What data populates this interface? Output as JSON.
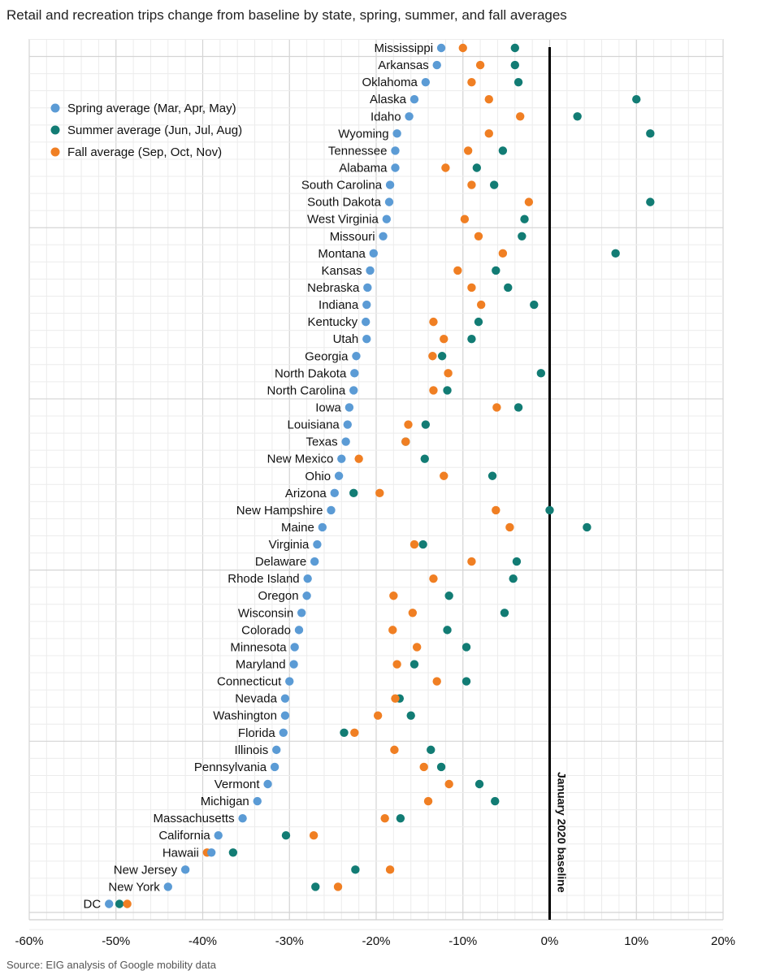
{
  "chart_data": {
    "type": "scatter",
    "title": "Retail and recreation trips change from baseline by state, spring, summer, and fall averages",
    "source": "Source: EIG analysis of Google mobility data",
    "baseline_label": "January 2020 baseline",
    "x_ticks": [
      -60,
      -50,
      -40,
      -30,
      -20,
      -10,
      0,
      10,
      20
    ],
    "x_tick_labels": [
      "-60%",
      "-50%",
      "-40%",
      "-30%",
      "-20%",
      "-10%",
      "0%",
      "10%",
      "20%"
    ],
    "xlim": [
      -60,
      20
    ],
    "series": [
      {
        "name": "Spring average (Mar, Apr, May)",
        "key": "spring",
        "color": "#5b9bd5"
      },
      {
        "name": "Summer average (Jun, Jul, Aug)",
        "key": "summer",
        "color": "#127c74"
      },
      {
        "name": "Fall average (Sep, Oct, Nov)",
        "key": "fall",
        "color": "#f07f23"
      }
    ],
    "states": [
      {
        "name": "Mississippi",
        "spring": -12.5,
        "summer": -4.0,
        "fall": -10.0
      },
      {
        "name": "Arkansas",
        "spring": -13.0,
        "summer": -4.0,
        "fall": -8.0
      },
      {
        "name": "Oklahoma",
        "spring": -14.3,
        "summer": -3.6,
        "fall": -9.0
      },
      {
        "name": "Alaska",
        "spring": -15.6,
        "summer": 10.0,
        "fall": -7.0
      },
      {
        "name": "Idaho",
        "spring": -16.2,
        "summer": 3.2,
        "fall": -3.4
      },
      {
        "name": "Wyoming",
        "spring": -17.6,
        "summer": 11.6,
        "fall": -7.0
      },
      {
        "name": "Tennessee",
        "spring": -17.8,
        "summer": -5.4,
        "fall": -9.4
      },
      {
        "name": "Alabama",
        "spring": -17.8,
        "summer": -8.4,
        "fall": -12.0
      },
      {
        "name": "South Carolina",
        "spring": -18.4,
        "summer": -6.4,
        "fall": -9.0
      },
      {
        "name": "South Dakota",
        "spring": -18.5,
        "summer": 11.6,
        "fall": -2.4
      },
      {
        "name": "West Virginia",
        "spring": -18.8,
        "summer": -2.9,
        "fall": -9.8
      },
      {
        "name": "Missouri",
        "spring": -19.2,
        "summer": -3.2,
        "fall": -8.2
      },
      {
        "name": "Montana",
        "spring": -20.3,
        "summer": 7.6,
        "fall": -5.4
      },
      {
        "name": "Kansas",
        "spring": -20.7,
        "summer": -6.2,
        "fall": -10.6
      },
      {
        "name": "Nebraska",
        "spring": -21.0,
        "summer": -4.8,
        "fall": -9.0
      },
      {
        "name": "Indiana",
        "spring": -21.1,
        "summer": -1.8,
        "fall": -7.9
      },
      {
        "name": "Kentucky",
        "spring": -21.2,
        "summer": -8.2,
        "fall": -13.4
      },
      {
        "name": "Utah",
        "spring": -21.1,
        "summer": -9.0,
        "fall": -12.2
      },
      {
        "name": "Georgia",
        "spring": -22.3,
        "summer": -12.4,
        "fall": -13.5
      },
      {
        "name": "North Dakota",
        "spring": -22.5,
        "summer": -1.0,
        "fall": -11.7
      },
      {
        "name": "North Carolina",
        "spring": -22.6,
        "summer": -11.8,
        "fall": -13.4
      },
      {
        "name": "Iowa",
        "spring": -23.1,
        "summer": -3.6,
        "fall": -6.1
      },
      {
        "name": "Louisiana",
        "spring": -23.3,
        "summer": -14.3,
        "fall": -16.3
      },
      {
        "name": "Texas",
        "spring": -23.5,
        "summer": -16.6,
        "fall": -16.6
      },
      {
        "name": "New Mexico",
        "spring": -24.0,
        "summer": -14.4,
        "fall": -22.0
      },
      {
        "name": "Ohio",
        "spring": -24.3,
        "summer": -6.6,
        "fall": -12.2
      },
      {
        "name": "Arizona",
        "spring": -24.8,
        "summer": -22.6,
        "fall": -19.6
      },
      {
        "name": "New Hampshire",
        "spring": -25.2,
        "summer": 0.0,
        "fall": -6.2
      },
      {
        "name": "Maine",
        "spring": -26.2,
        "summer": 4.3,
        "fall": -4.6
      },
      {
        "name": "Virginia",
        "spring": -26.8,
        "summer": -14.6,
        "fall": -15.6
      },
      {
        "name": "Delaware",
        "spring": -27.1,
        "summer": -3.8,
        "fall": -9.0
      },
      {
        "name": "Rhode Island",
        "spring": -27.9,
        "summer": -4.2,
        "fall": -13.4
      },
      {
        "name": "Oregon",
        "spring": -28.0,
        "summer": -11.6,
        "fall": -18.0
      },
      {
        "name": "Wisconsin",
        "spring": -28.6,
        "summer": -5.2,
        "fall": -15.8
      },
      {
        "name": "Colorado",
        "spring": -28.9,
        "summer": -11.8,
        "fall": -18.1
      },
      {
        "name": "Minnesota",
        "spring": -29.4,
        "summer": -9.6,
        "fall": -15.3
      },
      {
        "name": "Maryland",
        "spring": -29.5,
        "summer": -15.6,
        "fall": -17.6
      },
      {
        "name": "Connecticut",
        "spring": -30.0,
        "summer": -9.6,
        "fall": -13.0
      },
      {
        "name": "Nevada",
        "spring": -30.5,
        "summer": -17.3,
        "fall": -17.8
      },
      {
        "name": "Washington",
        "spring": -30.5,
        "summer": -16.0,
        "fall": -19.8
      },
      {
        "name": "Florida",
        "spring": -30.7,
        "summer": -23.7,
        "fall": -22.5
      },
      {
        "name": "Illinois",
        "spring": -31.5,
        "summer": -13.7,
        "fall": -17.9
      },
      {
        "name": "Pennsylvania",
        "spring": -31.7,
        "summer": -12.5,
        "fall": -14.5
      },
      {
        "name": "Vermont",
        "spring": -32.5,
        "summer": -8.1,
        "fall": -11.6
      },
      {
        "name": "Michigan",
        "spring": -33.7,
        "summer": -6.3,
        "fall": -14.0
      },
      {
        "name": "Massachusetts",
        "spring": -35.4,
        "summer": -17.2,
        "fall": -19.0
      },
      {
        "name": "California",
        "spring": -38.2,
        "summer": -30.4,
        "fall": -27.2
      },
      {
        "name": "Hawaii",
        "spring": -39.0,
        "summer": -36.5,
        "fall": -39.5
      },
      {
        "name": "New Jersey",
        "spring": -42.0,
        "summer": -22.4,
        "fall": -18.4
      },
      {
        "name": "New York",
        "spring": -44.0,
        "summer": -27.0,
        "fall": -24.4
      },
      {
        "name": "DC",
        "spring": -50.8,
        "summer": -49.6,
        "fall": -48.7
      }
    ]
  }
}
